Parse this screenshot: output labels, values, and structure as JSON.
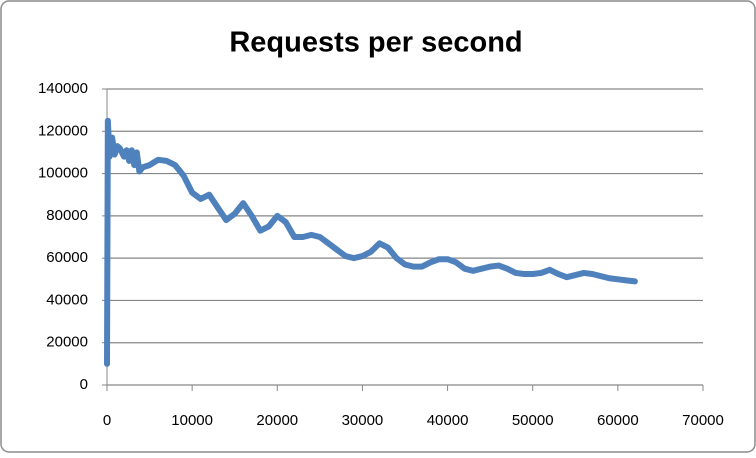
{
  "chart_data": {
    "type": "line",
    "title": "Requests per second",
    "x": [
      0,
      100,
      300,
      600,
      900,
      1200,
      1500,
      2000,
      2300,
      2600,
      2900,
      3200,
      3500,
      3800,
      4200,
      5000,
      6000,
      7000,
      8000,
      9000,
      10000,
      11000,
      12000,
      13000,
      14000,
      15000,
      16000,
      17000,
      18000,
      19000,
      20000,
      21000,
      22000,
      23000,
      24000,
      25000,
      26000,
      27000,
      28000,
      29000,
      30000,
      31000,
      32000,
      33000,
      34000,
      35000,
      36000,
      37000,
      38000,
      39000,
      40000,
      41000,
      42000,
      43000,
      44000,
      45000,
      46000,
      47000,
      48000,
      49000,
      50000,
      51000,
      52000,
      53000,
      54000,
      55000,
      56000,
      57000,
      58000,
      59000,
      60000,
      61000,
      62000
    ],
    "values": [
      10000,
      125000,
      108000,
      117000,
      109000,
      113000,
      112000,
      108000,
      111000,
      106000,
      111000,
      104000,
      110000,
      101000,
      103000,
      104000,
      106500,
      106000,
      104000,
      99000,
      91000,
      88000,
      90000,
      84000,
      78000,
      81000,
      86000,
      80000,
      73000,
      75000,
      80000,
      77000,
      70000,
      70000,
      71000,
      70000,
      67000,
      64000,
      61000,
      60000,
      61000,
      63000,
      67000,
      65000,
      60000,
      57000,
      56000,
      56000,
      58000,
      59500,
      59500,
      58000,
      55000,
      54000,
      55000,
      56000,
      56500,
      55000,
      53000,
      52500,
      52500,
      53000,
      54500,
      52500,
      51000,
      52000,
      53000,
      52500,
      51500,
      50500,
      50000,
      49500,
      49000
    ],
    "color": "#4f81bd",
    "xlim": [
      0,
      70000
    ],
    "xticks": [
      0,
      10000,
      20000,
      30000,
      40000,
      50000,
      60000,
      70000
    ],
    "ylim": [
      0,
      140000
    ],
    "yticks": [
      0,
      20000,
      40000,
      60000,
      80000,
      100000,
      120000,
      140000
    ],
    "grid": true
  }
}
